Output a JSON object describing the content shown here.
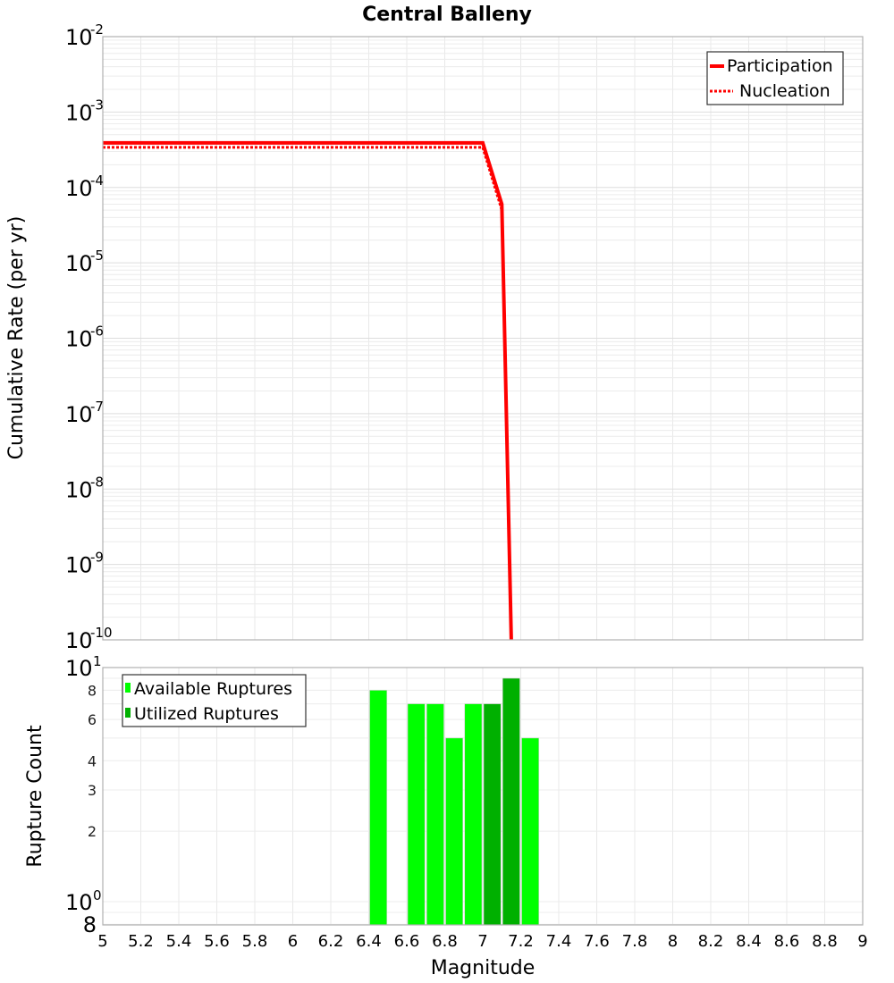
{
  "title": "Central Balleny",
  "top_plot": {
    "ylabel": "Cumulative Rate (per yr)",
    "y_ticks": [
      {
        "base": "10",
        "exp": "-2"
      },
      {
        "base": "10",
        "exp": "-3"
      },
      {
        "base": "10",
        "exp": "-4"
      },
      {
        "base": "10",
        "exp": "-5"
      },
      {
        "base": "10",
        "exp": "-6"
      },
      {
        "base": "10",
        "exp": "-7"
      },
      {
        "base": "10",
        "exp": "-8"
      },
      {
        "base": "10",
        "exp": "-9"
      },
      {
        "base": "10",
        "exp": "-10"
      }
    ],
    "legend": [
      {
        "label": "Participation",
        "style": "solid",
        "color": "#ff0000"
      },
      {
        "label": "Nucleation",
        "style": "dotted",
        "color": "#ff0000"
      }
    ]
  },
  "bottom_plot": {
    "ylabel": "Rupture Count",
    "y_ticks": [
      {
        "label": "10",
        "exp": "1",
        "value": 10
      },
      {
        "label": "8",
        "value": 8
      },
      {
        "label": "6",
        "value": 6
      },
      {
        "label": "4",
        "value": 4
      },
      {
        "label": "3",
        "value": 3
      },
      {
        "label": "2",
        "value": 2
      },
      {
        "label": "10",
        "exp": "0",
        "value": 1
      },
      {
        "label": "8",
        "value": 0.8
      }
    ],
    "legend": [
      {
        "label": "Available Ruptures",
        "color": "#00ff00"
      },
      {
        "label": "Utilized Ruptures",
        "color": "#00b000"
      }
    ]
  },
  "xlabel": "Magnitude",
  "x_ticks": [
    "5",
    "5.2",
    "5.4",
    "5.6",
    "5.8",
    "6",
    "6.2",
    "6.4",
    "6.6",
    "6.8",
    "7",
    "7.2",
    "7.4",
    "7.6",
    "7.8",
    "8",
    "8.2",
    "8.4",
    "8.6",
    "8.8",
    "9"
  ],
  "chart_data": [
    {
      "type": "line",
      "title": "Central Balleny",
      "xlabel": "Magnitude",
      "ylabel": "Cumulative Rate (per yr)",
      "xlim": [
        5,
        9
      ],
      "ylim": [
        1e-10,
        0.01
      ],
      "yscale": "log",
      "grid": true,
      "legend_position": "upper right",
      "series": [
        {
          "name": "Participation",
          "color": "#ff0000",
          "style": "solid",
          "x": [
            5.0,
            7.0,
            7.1,
            7.15
          ],
          "y": [
            0.00039,
            0.00039,
            6e-05,
            1e-10
          ]
        },
        {
          "name": "Nucleation",
          "color": "#ff0000",
          "style": "dotted",
          "x": [
            5.0,
            7.0,
            7.1,
            7.15
          ],
          "y": [
            0.00034,
            0.00034,
            5e-05,
            1e-10
          ]
        }
      ]
    },
    {
      "type": "bar",
      "xlabel": "Magnitude",
      "ylabel": "Rupture Count",
      "xlim": [
        5,
        9
      ],
      "ylim": [
        0.8,
        10
      ],
      "yscale": "log",
      "grid": true,
      "legend_position": "upper left",
      "categories": [
        6.45,
        6.65,
        6.75,
        6.85,
        6.95,
        7.05,
        7.15,
        7.25
      ],
      "series": [
        {
          "name": "Available Ruptures",
          "color": "#00ff00",
          "values": [
            8,
            7,
            7,
            5,
            7,
            0,
            0,
            5
          ]
        },
        {
          "name": "Utilized Ruptures",
          "color": "#00b000",
          "values": [
            0,
            0,
            0,
            0,
            0,
            7,
            9,
            0
          ]
        }
      ]
    }
  ]
}
